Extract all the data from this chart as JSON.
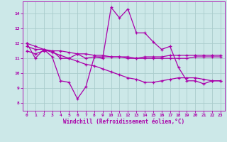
{
  "xlabel": "Windchill (Refroidissement éolien,°C)",
  "ylabel": "",
  "background_color": "#cce8e8",
  "grid_color": "#aacccc",
  "line_color": "#aa00aa",
  "xlim": [
    -0.5,
    23.5
  ],
  "ylim": [
    7.5,
    14.8
  ],
  "yticks": [
    8,
    9,
    10,
    11,
    12,
    13,
    14
  ],
  "xticks": [
    0,
    1,
    2,
    3,
    4,
    5,
    6,
    7,
    8,
    9,
    10,
    11,
    12,
    13,
    14,
    15,
    16,
    17,
    18,
    19,
    20,
    21,
    22,
    23
  ],
  "series1_x": [
    0,
    1,
    2,
    3,
    4,
    5,
    6,
    7,
    8,
    9,
    10,
    11,
    12,
    13,
    14,
    15,
    16,
    17,
    18,
    19,
    20,
    21,
    22,
    23
  ],
  "series1_y": [
    12.0,
    11.0,
    11.6,
    11.1,
    9.5,
    9.4,
    8.3,
    9.1,
    11.1,
    11.0,
    14.4,
    13.7,
    14.3,
    12.7,
    12.7,
    12.1,
    11.6,
    11.8,
    10.4,
    9.5,
    9.5,
    9.3,
    9.5,
    9.5
  ],
  "series2_x": [
    0,
    1,
    2,
    3,
    4,
    5,
    6,
    7,
    8,
    9,
    10,
    11,
    12,
    13,
    14,
    15,
    16,
    17,
    18,
    19,
    20,
    21,
    22,
    23
  ],
  "series2_y": [
    11.8,
    11.6,
    11.6,
    11.5,
    11.5,
    11.4,
    11.3,
    11.3,
    11.2,
    11.2,
    11.1,
    11.1,
    11.0,
    11.0,
    11.0,
    11.0,
    11.0,
    11.0,
    11.0,
    11.0,
    11.1,
    11.1,
    11.1,
    11.1
  ],
  "series3_x": [
    0,
    1,
    2,
    3,
    4,
    5,
    6,
    7,
    8,
    9,
    10,
    11,
    12,
    13,
    14,
    15,
    16,
    17,
    18,
    19,
    20,
    21,
    22,
    23
  ],
  "series3_y": [
    11.5,
    11.3,
    11.5,
    11.5,
    11.0,
    11.0,
    11.3,
    11.0,
    11.1,
    11.1,
    11.1,
    11.1,
    11.1,
    11.0,
    11.1,
    11.1,
    11.1,
    11.2,
    11.2,
    11.2,
    11.2,
    11.2,
    11.2,
    11.2
  ],
  "series4_x": [
    0,
    1,
    2,
    3,
    4,
    5,
    6,
    7,
    8,
    9,
    10,
    11,
    12,
    13,
    14,
    15,
    16,
    17,
    18,
    19,
    20,
    21,
    22,
    23
  ],
  "series4_y": [
    12.0,
    11.8,
    11.6,
    11.4,
    11.2,
    11.0,
    10.8,
    10.6,
    10.5,
    10.3,
    10.1,
    9.9,
    9.7,
    9.6,
    9.4,
    9.4,
    9.5,
    9.6,
    9.7,
    9.7,
    9.7,
    9.6,
    9.5,
    9.5
  ]
}
